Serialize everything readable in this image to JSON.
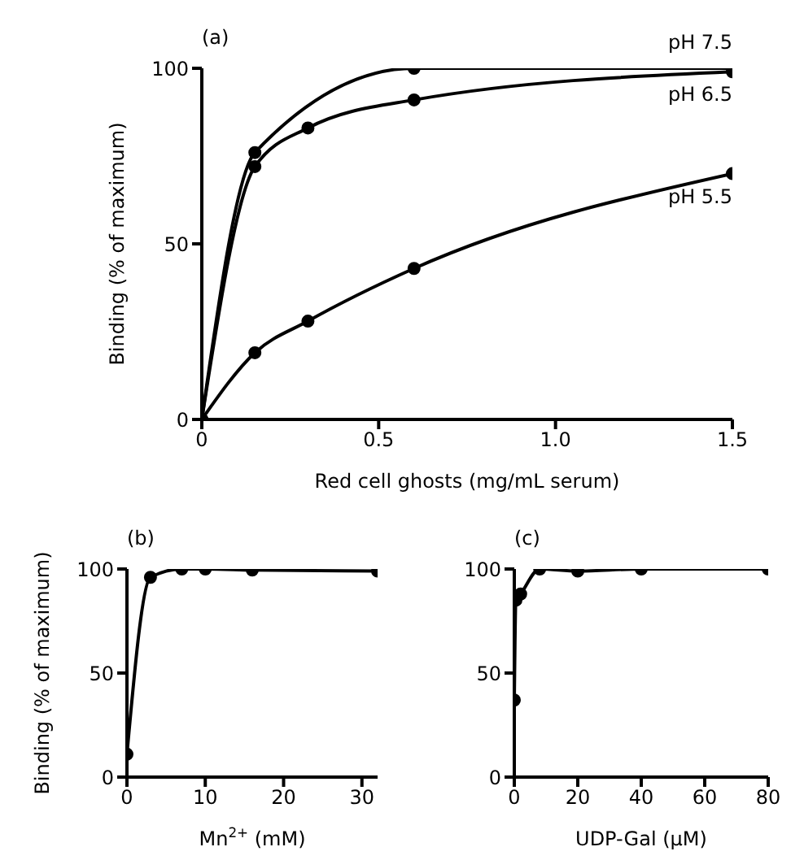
{
  "chart_data": [
    {
      "type": "line",
      "title": "(a)",
      "xlabel": "Red cell ghosts  (mg/mL serum)",
      "ylabel": "Binding (% of maximum)",
      "xlim": [
        0,
        1.5
      ],
      "xticks": [
        0,
        0.5,
        {
          "value": 1,
          "label": "1.0"
        },
        1.5
      ],
      "ylim": [
        0,
        100
      ],
      "yticks": [
        0,
        50,
        100
      ],
      "grid": false,
      "marker": "circle",
      "line_style": "solid",
      "legend": false,
      "series": [
        {
          "name": "pH 7.5",
          "color": "#000000",
          "x": [
            0,
            0.15,
            0.6,
            1.5
          ],
          "values": [
            0,
            76,
            100,
            100
          ]
        },
        {
          "name": "pH 6.5",
          "color": "#000000",
          "x": [
            0,
            0.15,
            0.3,
            0.6,
            1.5
          ],
          "values": [
            0,
            72,
            83,
            91,
            99
          ]
        },
        {
          "name": "pH 5.5",
          "color": "#000000",
          "x": [
            0,
            0.15,
            0.3,
            0.6,
            1.5
          ],
          "values": [
            0,
            19,
            28,
            43,
            70
          ]
        }
      ]
    },
    {
      "type": "line",
      "title": "(b)",
      "xlabel": "Mn$^{2+}$ (mM)",
      "ylabel": "Binding (% of maximum)",
      "xlim": [
        0,
        32
      ],
      "xticks": [
        0,
        10,
        20,
        30
      ],
      "ylim": [
        0,
        100
      ],
      "yticks": [
        0,
        50,
        100
      ],
      "grid": false,
      "marker": "circle",
      "line_style": "solid",
      "legend": false,
      "series": [
        {
          "color": "#000000",
          "x": [
            0,
            3,
            7,
            10,
            16,
            32
          ],
          "values": [
            11,
            96,
            100,
            100,
            99.5,
            99
          ]
        }
      ]
    },
    {
      "type": "line",
      "title": "(c)",
      "xlabel": "UDP-Gal (μM)",
      "xlim": [
        0,
        80
      ],
      "xticks": [
        0,
        20,
        40,
        60,
        80
      ],
      "ylim": [
        0,
        100
      ],
      "yticks": [
        0,
        50,
        100
      ],
      "grid": false,
      "marker": "circle",
      "line_style": "solid",
      "legend": false,
      "series": [
        {
          "color": "#000000",
          "x": [
            0,
            0.5,
            2,
            8,
            20,
            40,
            80
          ],
          "values": [
            37,
            85,
            88,
            100,
            99,
            100,
            100
          ]
        }
      ]
    }
  ]
}
